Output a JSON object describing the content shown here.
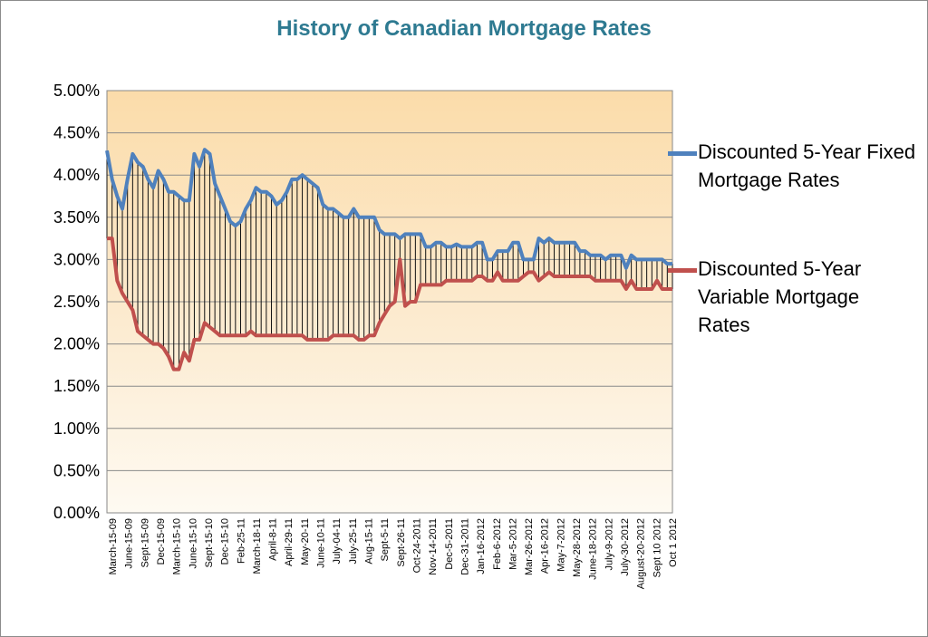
{
  "chart_data": {
    "type": "line",
    "title": "History of Canadian Mortgage Rates",
    "xlabel": "",
    "ylabel": "",
    "ylim": [
      0,
      5
    ],
    "yticks": [
      "0.00%",
      "0.50%",
      "1.00%",
      "1.50%",
      "2.00%",
      "2.50%",
      "3.00%",
      "3.50%",
      "4.00%",
      "4.50%",
      "5.00%"
    ],
    "grid": true,
    "legend_position": "right",
    "x_tick_labels": [
      "March-15-09",
      "June-15-09",
      "Sept-15-09",
      "Dec-15-09",
      "March-15-10",
      "June-15-10",
      "Sept-15-10",
      "Dec-15-10",
      "Feb-25-11",
      "March-18-11",
      "April-8-11",
      "April-29-11",
      "May-20-11",
      "June-10-11",
      "July-04-11",
      "July-25-11",
      "Aug-15-11",
      "Sept-5-11",
      "Sept-26-11",
      "Oct-24-2011",
      "Nov-14-2011",
      "Dec-5-2011",
      "Dec-31-2011",
      "Jan-16-2012",
      "Feb-6-2012",
      "Mar-5-2012",
      "Mar-26-2012",
      "Apr-16-2012",
      "May-7-2012",
      "May-28-2012",
      "June-18-2012",
      "July-9-2012",
      "July-30-2012",
      "August-20-2012",
      "Sept 10 2012",
      "Oct 1 2012"
    ],
    "series": [
      {
        "name": "Discounted 5-Year Fixed Mortgage Rates",
        "color": "#4f81bd",
        "values": [
          4.29,
          3.95,
          3.75,
          3.6,
          3.95,
          4.25,
          4.15,
          4.1,
          3.95,
          3.85,
          4.05,
          3.95,
          3.8,
          3.8,
          3.75,
          3.7,
          3.7,
          4.25,
          4.1,
          4.3,
          4.25,
          3.9,
          3.75,
          3.6,
          3.45,
          3.4,
          3.45,
          3.6,
          3.7,
          3.85,
          3.8,
          3.8,
          3.75,
          3.65,
          3.7,
          3.8,
          3.95,
          3.95,
          4.0,
          3.95,
          3.9,
          3.85,
          3.65,
          3.6,
          3.6,
          3.55,
          3.5,
          3.5,
          3.6,
          3.5,
          3.5,
          3.5,
          3.5,
          3.35,
          3.3,
          3.3,
          3.3,
          3.25,
          3.3,
          3.3,
          3.3,
          3.3,
          3.15,
          3.15,
          3.2,
          3.2,
          3.15,
          3.15,
          3.18,
          3.15,
          3.15,
          3.15,
          3.2,
          3.2,
          3.0,
          3.0,
          3.1,
          3.1,
          3.1,
          3.2,
          3.2,
          3.0,
          3.0,
          3.0,
          3.25,
          3.2,
          3.25,
          3.2,
          3.2,
          3.2,
          3.2,
          3.2,
          3.1,
          3.1,
          3.05,
          3.05,
          3.05,
          3.0,
          3.05,
          3.05,
          3.05,
          2.9,
          3.05,
          3.0,
          3.0,
          3.0,
          3.0,
          3.0,
          3.0,
          2.95,
          2.95
        ]
      },
      {
        "name": "Discounted 5-Year Variable Mortgage Rates",
        "color": "#c0504d",
        "values": [
          3.25,
          3.25,
          2.75,
          2.6,
          2.5,
          2.4,
          2.15,
          2.1,
          2.05,
          2.0,
          2.0,
          1.95,
          1.85,
          1.7,
          1.7,
          1.9,
          1.8,
          2.05,
          2.05,
          2.25,
          2.2,
          2.15,
          2.1,
          2.1,
          2.1,
          2.1,
          2.1,
          2.1,
          2.15,
          2.1,
          2.1,
          2.1,
          2.1,
          2.1,
          2.1,
          2.1,
          2.1,
          2.1,
          2.1,
          2.05,
          2.05,
          2.05,
          2.05,
          2.05,
          2.1,
          2.1,
          2.1,
          2.1,
          2.1,
          2.05,
          2.05,
          2.1,
          2.1,
          2.25,
          2.35,
          2.45,
          2.5,
          3.0,
          2.45,
          2.5,
          2.5,
          2.7,
          2.7,
          2.7,
          2.7,
          2.7,
          2.75,
          2.75,
          2.75,
          2.75,
          2.75,
          2.75,
          2.8,
          2.8,
          2.75,
          2.75,
          2.85,
          2.75,
          2.75,
          2.75,
          2.75,
          2.8,
          2.85,
          2.85,
          2.75,
          2.8,
          2.85,
          2.8,
          2.8,
          2.8,
          2.8,
          2.8,
          2.8,
          2.8,
          2.8,
          2.75,
          2.75,
          2.75,
          2.75,
          2.75,
          2.75,
          2.65,
          2.75,
          2.65,
          2.65,
          2.65,
          2.65,
          2.75,
          2.65,
          2.65,
          2.65
        ]
      }
    ]
  }
}
